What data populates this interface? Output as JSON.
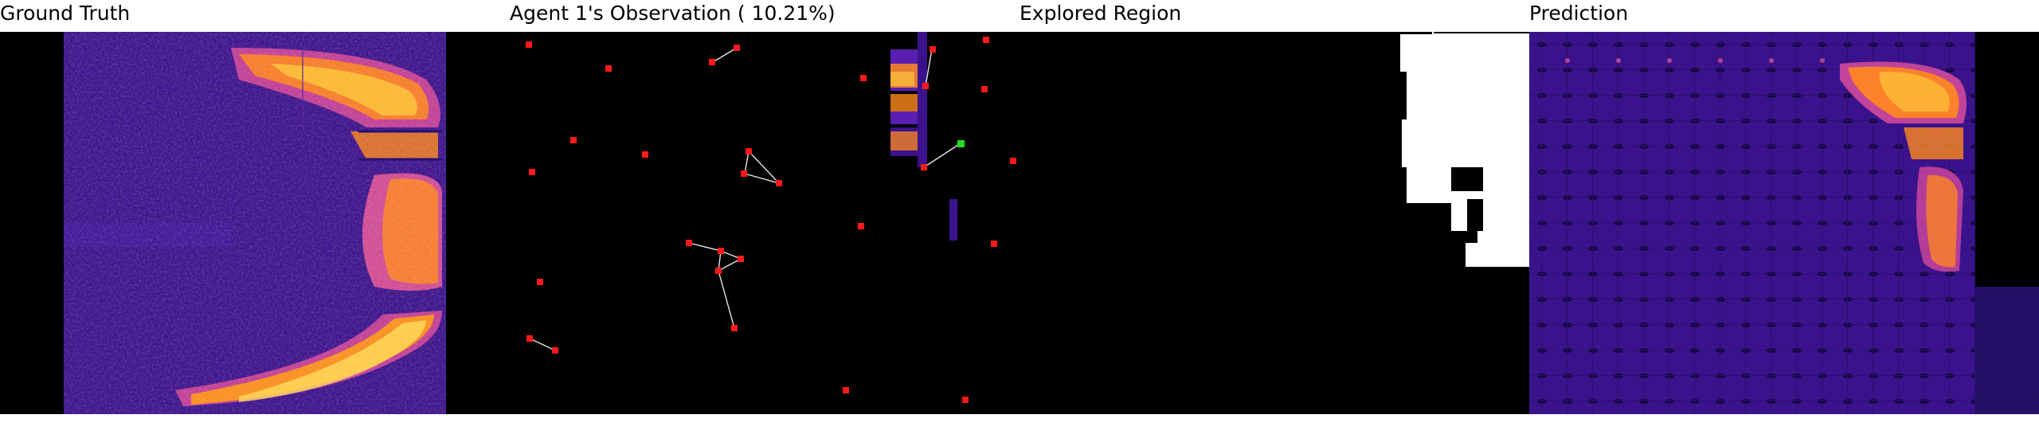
{
  "panels": {
    "ground_truth": {
      "title": "Ground Truth"
    },
    "observation": {
      "title": "Agent 1's Observation ( 10.21%)"
    },
    "explored": {
      "title": "Explored Region"
    },
    "prediction": {
      "title": "Prediction"
    }
  },
  "colors": {
    "background": "#000000",
    "field_dark": "#2a0f72",
    "field_mid": "#5a1fb0",
    "hot_orange": "#ff9a1a",
    "hot_yellow": "#ffe060",
    "agent_marker": "#ff1a1a",
    "agent_current": "#22dd22",
    "path_line": "#e6e6e6",
    "explored_mask": "#ffffff"
  }
}
